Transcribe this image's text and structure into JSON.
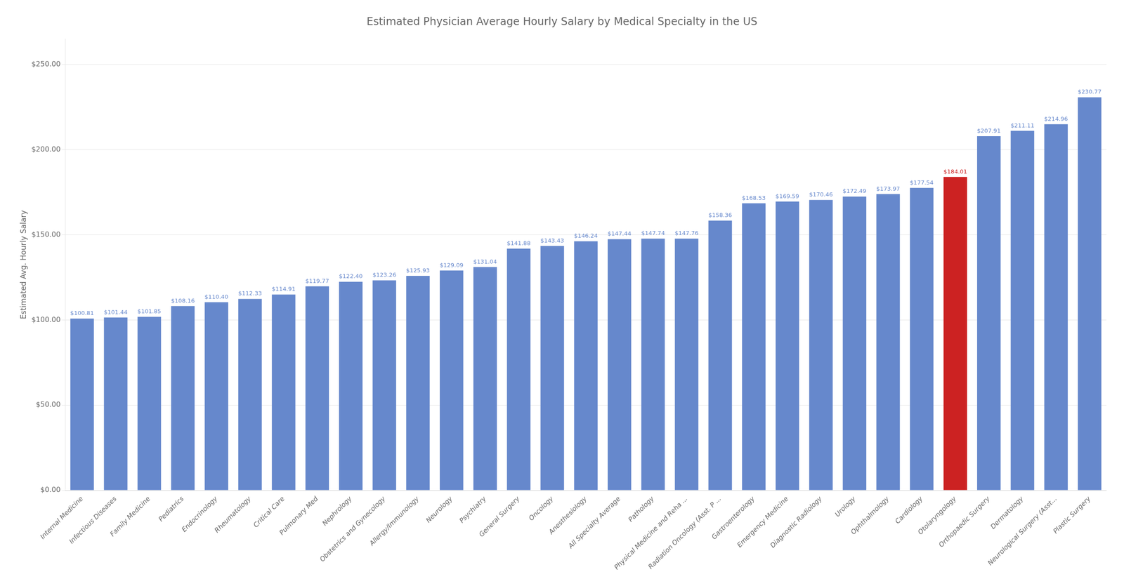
{
  "chart_data": {
    "type": "bar",
    "title": "Estimated Physician Average Hourly Salary by Medical Specialty in the US",
    "ylabel": "Estimated Avg. Hourly Salary",
    "categories": [
      "Internal Medicine",
      "Infectious Diseases",
      "Family Medicine",
      "Pediatrics",
      "Endocrinology",
      "Rheumatology",
      "Critical Care",
      "Pulmonary Med",
      "Nephrology",
      "Obstetrics and Gynecology",
      "Allergy/Immunology",
      "Neurology",
      "Psychiatry",
      "General Surgery",
      "Oncology",
      "Anesthesiology",
      "All Specialty Average",
      "Pathology",
      "Physical Medicine and Reha ...",
      "Radiation Oncology (Asst. P ...",
      "Gastroenterology",
      "Emergency Medicine",
      "Diagnostic Radiology",
      "Urology",
      "Ophthalmology",
      "Cardiology",
      "Otolaryngology",
      "Orthopaedic Surgery",
      "Dermatology",
      "Neurological Surgery (Asst...",
      "Plastic Surgery"
    ],
    "values": [
      100.81,
      101.44,
      101.85,
      108.16,
      110.4,
      112.33,
      114.91,
      119.77,
      122.4,
      123.26,
      125.93,
      129.09,
      131.04,
      141.88,
      143.43,
      146.24,
      147.44,
      147.74,
      147.76,
      158.36,
      168.53,
      169.59,
      170.46,
      172.49,
      173.97,
      177.54,
      184.01,
      207.91,
      211.11,
      214.96,
      230.77
    ],
    "value_labels": [
      "$100.81",
      "$101.44",
      "$101.85",
      "$108.16",
      "$110.40",
      "$112.33",
      "$114.91",
      "$119.77",
      "$122.40",
      "$123.26",
      "$125.93",
      "$129.09",
      "$131.04",
      "$141.88",
      "$143.43",
      "$146.24",
      "$147.44",
      "$147.74",
      "$147.76",
      "$158.36",
      "$168.53",
      "$169.59",
      "$170.46",
      "$172.49",
      "$173.97",
      "$177.54",
      "$184.01",
      "$207.91",
      "$211.11",
      "$214.96",
      "$230.77"
    ],
    "colors": [
      "#6688cc",
      "#6688cc",
      "#6688cc",
      "#6688cc",
      "#6688cc",
      "#6688cc",
      "#6688cc",
      "#6688cc",
      "#6688cc",
      "#6688cc",
      "#6688cc",
      "#6688cc",
      "#6688cc",
      "#6688cc",
      "#6688cc",
      "#6688cc",
      "#6688cc",
      "#6688cc",
      "#6688cc",
      "#6688cc",
      "#6688cc",
      "#6688cc",
      "#6688cc",
      "#6688cc",
      "#6688cc",
      "#6688cc",
      "#cc2222",
      "#6688cc",
      "#6688cc",
      "#6688cc",
      "#6688cc"
    ],
    "ylim": [
      0,
      265
    ],
    "yticks": [
      {
        "value": 0,
        "label": "$0.00"
      },
      {
        "value": 50,
        "label": "$50.00"
      },
      {
        "value": 100,
        "label": "$100.00"
      },
      {
        "value": 150,
        "label": "$150.00"
      },
      {
        "value": 200,
        "label": "$200.00"
      },
      {
        "value": 250,
        "label": "$250.00"
      }
    ],
    "grid": true,
    "data_labels": true
  }
}
